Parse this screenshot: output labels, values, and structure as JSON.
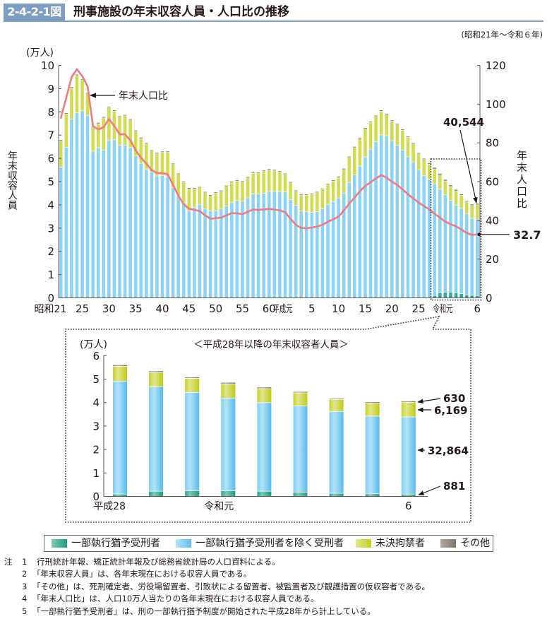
{
  "header": {
    "figure_number": "2-4-2-1図",
    "title": "刑事施設の年末収容人員・人口比の推移",
    "period": "(昭和21年～令和６年)"
  },
  "chart_data": [
    {
      "id": "main",
      "type": "bar+line",
      "title": "刑事施設の年末収容人員・人口比の推移",
      "categories": [
        "昭和21",
        "昭和22",
        "昭和23",
        "昭和24",
        "昭和25",
        "昭和26",
        "昭和27",
        "昭和28",
        "昭和29",
        "昭和30",
        "昭和31",
        "昭和32",
        "昭和33",
        "昭和34",
        "昭和35",
        "昭和36",
        "昭和37",
        "昭和38",
        "昭和39",
        "昭和40",
        "昭和41",
        "昭和42",
        "昭和43",
        "昭和44",
        "昭和45",
        "昭和46",
        "昭和47",
        "昭和48",
        "昭和49",
        "昭和50",
        "昭和51",
        "昭和52",
        "昭和53",
        "昭和54",
        "昭和55",
        "昭和56",
        "昭和57",
        "昭和58",
        "昭和59",
        "昭和60",
        "昭和61",
        "昭和62",
        "昭和63",
        "平成元",
        "平成2",
        "平成3",
        "平成4",
        "平成5",
        "平成6",
        "平成7",
        "平成8",
        "平成9",
        "平成10",
        "平成11",
        "平成12",
        "平成13",
        "平成14",
        "平成15",
        "平成16",
        "平成17",
        "平成18",
        "平成19",
        "平成20",
        "平成21",
        "平成22",
        "平成23",
        "平成24",
        "平成25",
        "平成26",
        "平成27",
        "平成28",
        "平成29",
        "平成30",
        "令和元",
        "令和2",
        "令和3",
        "令和4",
        "令和5",
        "令和6"
      ],
      "x_tick_labels": [
        {
          "category": "昭和21",
          "label": "昭和21"
        },
        {
          "category": "昭和25",
          "label": "25"
        },
        {
          "category": "昭和30",
          "label": "30"
        },
        {
          "category": "昭和35",
          "label": "35"
        },
        {
          "category": "昭和40",
          "label": "40"
        },
        {
          "category": "昭和45",
          "label": "45"
        },
        {
          "category": "昭和50",
          "label": "50"
        },
        {
          "category": "昭和55",
          "label": "55"
        },
        {
          "category": "昭和60",
          "label": "60"
        },
        {
          "category": "平成元",
          "label": "平成元"
        },
        {
          "category": "平成5",
          "label": "5"
        },
        {
          "category": "平成10",
          "label": "10"
        },
        {
          "category": "平成15",
          "label": "15"
        },
        {
          "category": "平成20",
          "label": "20"
        },
        {
          "category": "平成25",
          "label": "25"
        },
        {
          "category": "令和元",
          "label": "令和元"
        },
        {
          "category": "令和6",
          "label": "6"
        }
      ],
      "y_left": {
        "label": "年末収容人員",
        "unit": "(万人)",
        "lim": [
          0,
          10
        ],
        "ticks": [
          0,
          1,
          2,
          3,
          4,
          5,
          6,
          7,
          8,
          9,
          10
        ]
      },
      "y_right": {
        "label": "年末人口比",
        "lim": [
          0,
          120
        ],
        "ticks": [
          0,
          20,
          40,
          60,
          80,
          100,
          120
        ]
      },
      "bar_series": [
        {
          "key": "partial-suspension-inmates",
          "name": "一部執行猶予受刑者",
          "color": "#2fae93",
          "values": [
            0,
            0,
            0,
            0,
            0,
            0,
            0,
            0,
            0,
            0,
            0,
            0,
            0,
            0,
            0,
            0,
            0,
            0,
            0,
            0,
            0,
            0,
            0,
            0,
            0,
            0,
            0,
            0,
            0,
            0,
            0,
            0,
            0,
            0,
            0,
            0,
            0,
            0,
            0,
            0,
            0,
            0,
            0,
            0,
            0,
            0,
            0,
            0,
            0,
            0,
            0,
            0,
            0,
            0,
            0,
            0,
            0,
            0,
            0,
            0,
            0,
            0,
            0,
            0,
            0,
            0,
            0,
            0,
            0,
            0,
            0.09,
            0.21,
            0.23,
            0.23,
            0.21,
            0.17,
            0.12,
            0.1,
            0.0881
          ]
        },
        {
          "key": "other-sentenced-inmates",
          "name": "一部執行猶予受刑者を除く受刑者",
          "color": "#8dd3f5",
          "values": [
            5.61,
            6.47,
            7.68,
            7.95,
            8.04,
            7.83,
            6.3,
            6.45,
            6.35,
            6.76,
            6.79,
            6.56,
            6.56,
            6.45,
            6.1,
            5.78,
            5.53,
            5.4,
            5.23,
            5.25,
            5.2,
            4.73,
            4.39,
            4.1,
            3.73,
            3.89,
            4.01,
            3.83,
            3.73,
            3.73,
            3.81,
            3.94,
            4.09,
            4.18,
            4.14,
            4.29,
            4.46,
            4.46,
            4.49,
            4.57,
            4.57,
            4.56,
            4.54,
            4.21,
            3.97,
            3.73,
            3.69,
            3.67,
            3.7,
            3.82,
            4.01,
            4.13,
            4.29,
            4.49,
            4.95,
            5.28,
            5.66,
            6.05,
            6.38,
            6.71,
            7.0,
            6.97,
            6.75,
            6.56,
            6.35,
            6.06,
            5.84,
            5.51,
            5.25,
            5.08,
            4.81,
            4.46,
            4.19,
            3.95,
            3.77,
            3.67,
            3.49,
            3.31,
            3.2864
          ]
        },
        {
          "key": "unsentenced-detainees",
          "name": "未決拘禁者",
          "color": "#d2dc50",
          "values": [
            1.13,
            1.43,
            1.34,
            1.6,
            1.31,
            0.93,
            1.01,
            1.03,
            1.38,
            1.41,
            1.23,
            1.2,
            1.26,
            1.19,
            1.05,
            1.06,
            1.08,
            0.9,
            0.96,
            1.0,
            1.05,
            1.0,
            0.91,
            0.85,
            0.95,
            0.79,
            0.71,
            0.68,
            0.64,
            0.76,
            0.76,
            0.84,
            0.86,
            0.83,
            0.83,
            0.86,
            0.89,
            0.89,
            0.94,
            0.92,
            0.89,
            0.84,
            0.76,
            0.72,
            0.6,
            0.68,
            0.71,
            0.77,
            0.81,
            0.83,
            0.84,
            0.88,
            0.88,
            1.02,
            1.08,
            1.17,
            1.18,
            1.21,
            1.15,
            1.08,
            1.02,
            0.9,
            0.84,
            0.87,
            0.85,
            0.83,
            0.77,
            0.67,
            0.69,
            0.66,
            0.63,
            0.6,
            0.6,
            0.6,
            0.6,
            0.56,
            0.51,
            0.55,
            0.6169
          ]
        },
        {
          "key": "others",
          "name": "その他",
          "color": "#8b8479",
          "values": [
            0.05,
            0.05,
            0.05,
            0.05,
            0.05,
            0.05,
            0.05,
            0.05,
            0.05,
            0.05,
            0.05,
            0.05,
            0.05,
            0.05,
            0.05,
            0.05,
            0.05,
            0.05,
            0.05,
            0.05,
            0.05,
            0.05,
            0.05,
            0.05,
            0.05,
            0.05,
            0.05,
            0.05,
            0.05,
            0.05,
            0.05,
            0.05,
            0.05,
            0.05,
            0.05,
            0.05,
            0.05,
            0.05,
            0.05,
            0.05,
            0.05,
            0.05,
            0.05,
            0.05,
            0.05,
            0.05,
            0.05,
            0.05,
            0.05,
            0.05,
            0.05,
            0.05,
            0.05,
            0.05,
            0.05,
            0.05,
            0.05,
            0.05,
            0.05,
            0.05,
            0.05,
            0.05,
            0.05,
            0.05,
            0.05,
            0.05,
            0.05,
            0.05,
            0.05,
            0.05,
            0.07,
            0.07,
            0.06,
            0.07,
            0.07,
            0.06,
            0.05,
            0.06,
            0.063
          ]
        }
      ],
      "line_series": {
        "name": "年末人口比",
        "color": "#f07b80",
        "values": [
          92.9,
          103.3,
          113.9,
          118.0,
          114.4,
          109.3,
          88.7,
          86.9,
          88.1,
          92.3,
          88.7,
          84.4,
          84.4,
          81.4,
          76.2,
          72.3,
          69.3,
          65.9,
          64.4,
          64.4,
          63.8,
          58.3,
          52.7,
          48.3,
          46.0,
          45.4,
          44.8,
          42.6,
          40.8,
          41.1,
          41.4,
          42.6,
          43.8,
          43.6,
          43.2,
          44.4,
          45.6,
          45.4,
          45.6,
          45.9,
          45.6,
          45.1,
          44.2,
          40.8,
          37.7,
          36.1,
          35.9,
          36.3,
          36.8,
          37.7,
          39.3,
          40.5,
          42.0,
          45.0,
          48.7,
          51.7,
          55.0,
          57.8,
          59.6,
          61.6,
          63.4,
          62.0,
          59.9,
          58.3,
          55.9,
          53.5,
          51.3,
          49.2,
          47.4,
          45.6,
          43.4,
          41.4,
          39.3,
          38.0,
          36.9,
          35.3,
          33.5,
          32.5,
          32.7
        ]
      },
      "annotations": {
        "line_label": {
          "text": "年末人口比",
          "color": "#f07b80"
        },
        "last_total": {
          "text": "40,544",
          "color": "#231815"
        },
        "last_ratio": {
          "text": "32.7",
          "color": "#e8553f"
        }
      },
      "highlight_range": [
        "平成28",
        "令和6"
      ]
    },
    {
      "id": "inset",
      "type": "bar",
      "title": "＜平成28年以降の年末収容者人員＞",
      "unit": "(万人)",
      "categories": [
        "平成28",
        "平成29",
        "平成30",
        "令和元",
        "令和2",
        "令和3",
        "令和4",
        "令和5",
        "令和6"
      ],
      "x_tick_labels": [
        {
          "category": "平成28",
          "label": "平成28"
        },
        {
          "category": "令和元",
          "label": "令和元"
        },
        {
          "category": "令和6",
          "label": "6"
        }
      ],
      "ylim": [
        0,
        6
      ],
      "ticks": [
        0,
        1,
        2,
        3,
        4,
        5,
        6
      ],
      "series": [
        {
          "key": "partial-suspension-inmates",
          "name": "一部執行猶予受刑者",
          "values": [
            0.09,
            0.21,
            0.23,
            0.23,
            0.21,
            0.17,
            0.12,
            0.1,
            0.0881
          ]
        },
        {
          "key": "other-sentenced-inmates",
          "name": "一部執行猶予受刑者を除く受刑者",
          "values": [
            4.81,
            4.46,
            4.19,
            3.95,
            3.77,
            3.67,
            3.49,
            3.31,
            3.2864
          ]
        },
        {
          "key": "unsentenced-detainees",
          "name": "未決拘禁者",
          "values": [
            0.63,
            0.6,
            0.6,
            0.6,
            0.6,
            0.56,
            0.51,
            0.55,
            0.6169
          ]
        },
        {
          "key": "others",
          "name": "その他",
          "values": [
            0.07,
            0.07,
            0.06,
            0.07,
            0.07,
            0.06,
            0.05,
            0.06,
            0.063
          ]
        }
      ],
      "annotations": [
        {
          "series": "その他",
          "text": "630",
          "color": "#7a7467"
        },
        {
          "series": "未決拘禁者",
          "text": "6,169",
          "color": "#b2c200"
        },
        {
          "series": "一部執行猶予受刑者を除く受刑者",
          "text": "32,864",
          "color": "#3fb2e6"
        },
        {
          "series": "一部執行猶予受刑者",
          "text": "881",
          "color": "#16a287"
        }
      ]
    }
  ],
  "legend": {
    "items": [
      {
        "label": "一部執行猶予受刑者",
        "color": "#2fae93"
      },
      {
        "label": "一部執行猶予受刑者を除く受刑者",
        "color": "#8dd3f5"
      },
      {
        "label": "未決拘禁者",
        "color": "#d2dc50"
      },
      {
        "label": "その他",
        "color": "#8b8479"
      }
    ]
  },
  "notes": {
    "prefix": "注",
    "items": [
      {
        "num": "1",
        "text": "行刑統計年報、矯正統計年報及び総務省統計局の人口資料による。"
      },
      {
        "num": "2",
        "text": "「年末収容人員」は、各年末現在における収容人員である。"
      },
      {
        "num": "3",
        "text": "「その他」は、死刑確定者、労役場留置者、引致状による留置者、被監置者及び観護措置の仮収容者である。"
      },
      {
        "num": "4",
        "text": "「年末人口比」は、人口10万人当たりの各年末現在における収容人員である。"
      },
      {
        "num": "5",
        "text": "「一部執行猶予受刑者」は、刑の一部執行猶予制度が開始された平成28年から計上している。"
      }
    ]
  }
}
